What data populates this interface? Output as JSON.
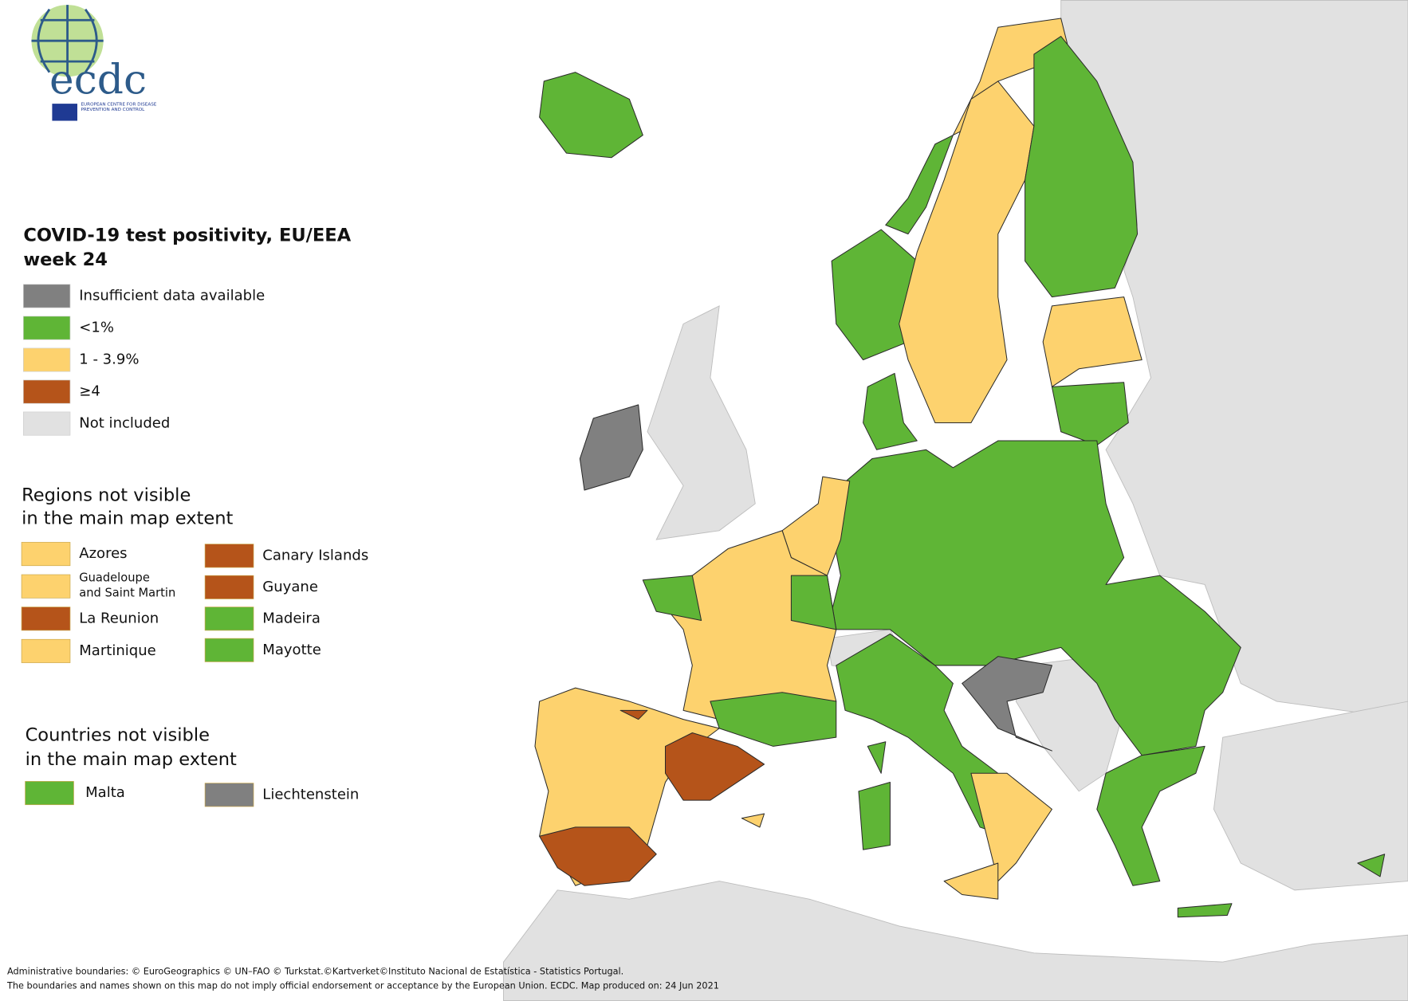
{
  "logo": {
    "text": "ecdc",
    "subtitle": "EUROPEAN CENTRE FOR DISEASE PREVENTION AND CONTROL"
  },
  "legend": {
    "title_lines": [
      "COVID-19 test positivity, EU/EEA",
      "week 24"
    ],
    "items": [
      {
        "label": "Insufficient data available",
        "color": "#808080"
      },
      {
        "label": "<1%",
        "color": "#5fb536"
      },
      {
        "label": "1 - 3.9%",
        "color": "#fdd26e"
      },
      {
        "label": "≥4",
        "color": "#b5541a"
      },
      {
        "label": "Not included",
        "color": "#e1e1e1"
      }
    ]
  },
  "regions": {
    "title_lines": [
      "Regions not visible",
      "in the main map extent"
    ],
    "items": [
      {
        "label_lines": [
          "Azores"
        ],
        "category": 2
      },
      {
        "label_lines": [
          "Guadeloupe",
          "and Saint Martin"
        ],
        "category": 2
      },
      {
        "label_lines": [
          "La Reunion"
        ],
        "category": 3
      },
      {
        "label_lines": [
          "Martinique"
        ],
        "category": 2
      },
      {
        "label_lines": [
          "Canary Islands"
        ],
        "category": 3
      },
      {
        "label_lines": [
          "Guyane"
        ],
        "category": 3
      },
      {
        "label_lines": [
          "Madeira"
        ],
        "category": 1
      },
      {
        "label_lines": [
          "Mayotte"
        ],
        "category": 1
      }
    ]
  },
  "countries": {
    "title_lines": [
      "Countries not visible",
      "in the main map extent"
    ],
    "items": [
      {
        "label_lines": [
          "Malta"
        ],
        "category": 1
      },
      {
        "label_lines": [
          "Liechtenstein"
        ],
        "category": 0
      }
    ]
  },
  "footer": [
    "Administrative boundaries: © EuroGeographics © UN–FAO © Turkstat.©Kartverket©Instituto Nacional de Estatística - Statistics Portugal.",
    "The boundaries and names shown on this map do not imply official endorsement or acceptance by the European Union. ECDC. Map produced on: 24 Jun 2021"
  ]
}
